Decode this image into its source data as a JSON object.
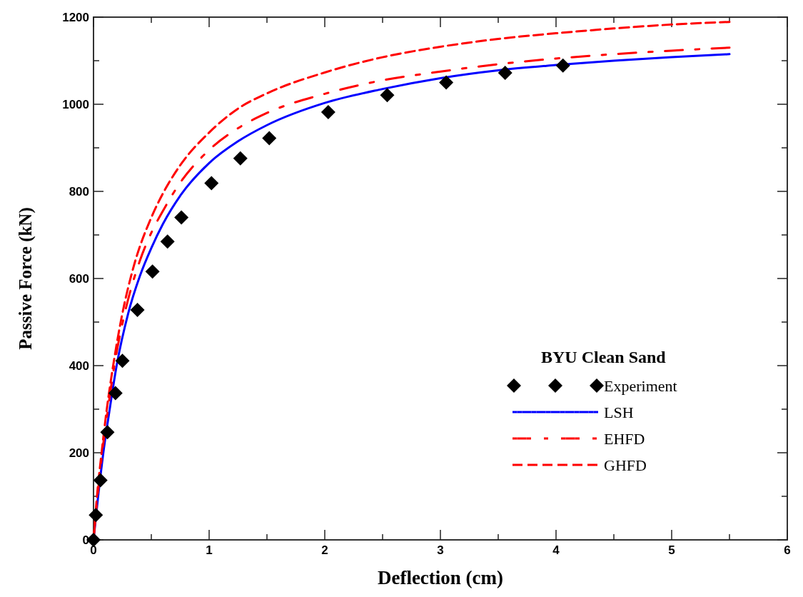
{
  "chart_data": {
    "type": "line",
    "xlabel": "Deflection (cm)",
    "ylabel": "Passive Force (kN)",
    "legend_title": "BYU Clean Sand",
    "legend": "right",
    "xlim": [
      0,
      6
    ],
    "ylim": [
      0,
      1200
    ],
    "xticks": [
      0,
      {
        "value": 0.5,
        "label": null
      },
      1,
      {
        "value": 1.5,
        "label": null
      },
      2,
      {
        "value": 2.5,
        "label": null
      },
      3,
      {
        "value": 3.5,
        "label": null
      },
      4,
      {
        "value": 4.5,
        "label": null
      },
      5,
      {
        "value": 5.5,
        "label": null
      },
      6
    ],
    "yticks": [
      0,
      {
        "value": 100,
        "label": null
      },
      200,
      {
        "value": 300,
        "label": null
      },
      400,
      {
        "value": 500,
        "label": null
      },
      600,
      {
        "value": 700,
        "label": null
      },
      800,
      {
        "value": 900,
        "label": null
      },
      1000,
      {
        "value": 1100,
        "label": null
      },
      1200
    ],
    "series": [
      {
        "name": "Experiment",
        "type": "scatter",
        "marker": "diamond",
        "color": "#000000",
        "x": [
          0,
          0.02,
          0.06,
          0.12,
          0.19,
          0.25,
          0.38,
          0.51,
          0.64,
          0.76,
          1.02,
          1.27,
          1.52,
          2.03,
          2.54,
          3.05,
          3.56,
          4.06
        ],
        "values": [
          0,
          57,
          137,
          247,
          337,
          411,
          528,
          616,
          685,
          740,
          819,
          876,
          922,
          982,
          1021,
          1050,
          1072,
          1089
        ]
      },
      {
        "name": "LSH",
        "line_style": "solid",
        "color": "#0000ff",
        "x": [
          0,
          0.04,
          0.085,
          0.14,
          0.2,
          0.3,
          0.4,
          0.5,
          0.6,
          0.75,
          1,
          1.25,
          1.5,
          2,
          2.5,
          3,
          3.5,
          4,
          4.5,
          5,
          5.5
        ],
        "values": [
          0,
          100,
          200,
          300,
          400,
          520,
          605,
          670,
          725,
          790,
          865,
          915,
          952,
          1003,
          1035,
          1060,
          1078,
          1090,
          1100,
          1108,
          1115
        ]
      },
      {
        "name": "EHFD",
        "line_style": "dashdot",
        "color": "#ff0000",
        "x": [
          0,
          0.035,
          0.075,
          0.125,
          0.18,
          0.27,
          0.4,
          0.5,
          0.6,
          0.75,
          1,
          1.25,
          1.5,
          2,
          2.5,
          3,
          3.5,
          4,
          4.5,
          5,
          5.5
        ],
        "values": [
          0,
          100,
          200,
          300,
          400,
          520,
          640,
          705,
          755,
          820,
          895,
          945,
          980,
          1024,
          1055,
          1075,
          1092,
          1105,
          1115,
          1123,
          1130
        ]
      },
      {
        "name": "GHFD",
        "line_style": "dashed",
        "color": "#ff0000",
        "x": [
          0,
          0.03,
          0.07,
          0.115,
          0.17,
          0.25,
          0.35,
          0.5,
          0.6,
          0.75,
          1,
          1.25,
          1.5,
          2,
          2.5,
          3,
          3.5,
          4,
          4.5,
          5,
          5.5
        ],
        "values": [
          0,
          100,
          200,
          300,
          400,
          520,
          630,
          740,
          795,
          860,
          935,
          990,
          1025,
          1073,
          1108,
          1132,
          1150,
          1163,
          1174,
          1183,
          1189
        ]
      }
    ]
  }
}
